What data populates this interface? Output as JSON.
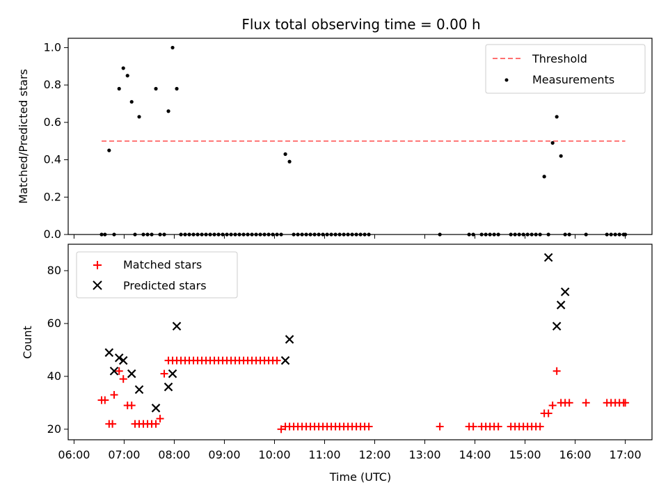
{
  "chart_data": [
    {
      "type": "scatter",
      "title": "Flux total observing time = 0.00 h",
      "xlabel": "",
      "ylabel": "Matched/Predicted stars",
      "xlim": [
        "05:53",
        "17:32"
      ],
      "ylim": [
        0.0,
        1.05
      ],
      "yticks": [
        0.0,
        0.2,
        0.4,
        0.6,
        0.8,
        1.0
      ],
      "grid": false,
      "legend_position": "top-right",
      "series": [
        {
          "name": "Threshold",
          "style": "dashed-line",
          "color": "#ff7070",
          "x": [
            "06:33",
            "17:00"
          ],
          "y": [
            0.5,
            0.5
          ]
        },
        {
          "name": "Measurements",
          "style": "dots",
          "color": "#000000",
          "x": [
            "06:33",
            "06:37",
            "06:42",
            "06:48",
            "06:54",
            "06:59",
            "07:04",
            "07:09",
            "07:13",
            "07:18",
            "07:23",
            "07:28",
            "07:33",
            "07:38",
            "07:43",
            "07:48",
            "07:53",
            "07:58",
            "08:03",
            "08:08",
            "08:13",
            "08:18",
            "08:23",
            "08:28",
            "08:33",
            "08:38",
            "08:43",
            "08:48",
            "08:53",
            "08:58",
            "09:03",
            "09:08",
            "09:13",
            "09:18",
            "09:23",
            "09:28",
            "09:33",
            "09:38",
            "09:43",
            "09:48",
            "09:53",
            "09:58",
            "10:03",
            "10:08",
            "10:13",
            "10:18",
            "10:23",
            "10:28",
            "10:33",
            "10:38",
            "10:43",
            "10:48",
            "10:53",
            "10:58",
            "11:03",
            "11:08",
            "11:13",
            "11:18",
            "11:23",
            "11:28",
            "11:33",
            "11:38",
            "11:43",
            "11:48",
            "11:53",
            "13:18",
            "13:53",
            "13:58",
            "14:08",
            "14:13",
            "14:18",
            "14:23",
            "14:28",
            "14:43",
            "14:48",
            "14:53",
            "14:58",
            "15:03",
            "15:08",
            "15:13",
            "15:18",
            "15:23",
            "15:28",
            "15:33",
            "15:38",
            "15:43",
            "15:48",
            "15:53",
            "16:13",
            "16:38",
            "16:43",
            "16:48",
            "16:53",
            "16:58",
            "17:00"
          ],
          "y": [
            0.0,
            0.0,
            0.45,
            0.0,
            0.78,
            0.89,
            0.85,
            0.71,
            0.0,
            0.63,
            0.0,
            0.0,
            0.0,
            0.78,
            0.0,
            0.0,
            0.66,
            1.0,
            0.78,
            0.0,
            0.0,
            0.0,
            0.0,
            0.0,
            0.0,
            0.0,
            0.0,
            0.0,
            0.0,
            0.0,
            0.0,
            0.0,
            0.0,
            0.0,
            0.0,
            0.0,
            0.0,
            0.0,
            0.0,
            0.0,
            0.0,
            0.0,
            0.0,
            0.0,
            0.43,
            0.39,
            0.0,
            0.0,
            0.0,
            0.0,
            0.0,
            0.0,
            0.0,
            0.0,
            0.0,
            0.0,
            0.0,
            0.0,
            0.0,
            0.0,
            0.0,
            0.0,
            0.0,
            0.0,
            0.0,
            0.0,
            0.0,
            0.0,
            0.0,
            0.0,
            0.0,
            0.0,
            0.0,
            0.0,
            0.0,
            0.0,
            0.0,
            0.0,
            0.0,
            0.0,
            0.0,
            0.31,
            0.0,
            0.49,
            0.63,
            0.42,
            0.0,
            0.0,
            0.0,
            0.0,
            0.0,
            0.0,
            0.0,
            0.0,
            0.0
          ]
        }
      ]
    },
    {
      "type": "scatter",
      "title": "",
      "xlabel": "Time (UTC)",
      "ylabel": "Count",
      "xlim": [
        "05:53",
        "17:32"
      ],
      "ylim": [
        16,
        90
      ],
      "yticks": [
        20,
        40,
        60,
        80
      ],
      "xticks": [
        "06:00",
        "07:00",
        "08:00",
        "09:00",
        "10:00",
        "11:00",
        "12:00",
        "13:00",
        "14:00",
        "15:00",
        "16:00",
        "17:00"
      ],
      "grid": false,
      "legend_position": "top-left",
      "series": [
        {
          "name": "Matched stars",
          "marker": "plus",
          "color": "#ff0000",
          "x": [
            "06:33",
            "06:37",
            "06:42",
            "06:46",
            "06:48",
            "06:54",
            "06:59",
            "07:04",
            "07:09",
            "07:13",
            "07:18",
            "07:23",
            "07:28",
            "07:33",
            "07:38",
            "07:43",
            "07:48",
            "07:53",
            "07:58",
            "08:03",
            "08:08",
            "08:13",
            "08:18",
            "08:23",
            "08:28",
            "08:33",
            "08:38",
            "08:43",
            "08:48",
            "08:53",
            "08:58",
            "09:03",
            "09:08",
            "09:13",
            "09:18",
            "09:23",
            "09:28",
            "09:33",
            "09:38",
            "09:43",
            "09:48",
            "09:53",
            "09:58",
            "10:03",
            "10:08",
            "10:13",
            "10:18",
            "10:23",
            "10:28",
            "10:33",
            "10:38",
            "10:43",
            "10:48",
            "10:53",
            "10:58",
            "11:03",
            "11:08",
            "11:13",
            "11:18",
            "11:23",
            "11:28",
            "11:33",
            "11:38",
            "11:43",
            "11:48",
            "11:53",
            "13:18",
            "13:53",
            "13:58",
            "14:08",
            "14:13",
            "14:18",
            "14:23",
            "14:28",
            "14:43",
            "14:48",
            "14:53",
            "14:58",
            "15:03",
            "15:08",
            "15:13",
            "15:18",
            "15:23",
            "15:28",
            "15:33",
            "15:38",
            "15:43",
            "15:48",
            "15:53",
            "16:13",
            "16:38",
            "16:43",
            "16:48",
            "16:53",
            "16:58",
            "17:00"
          ],
          "y": [
            31,
            31,
            22,
            22,
            33,
            42,
            39,
            29,
            29,
            22,
            22,
            22,
            22,
            22,
            22,
            24,
            41,
            46,
            46,
            46,
            46,
            46,
            46,
            46,
            46,
            46,
            46,
            46,
            46,
            46,
            46,
            46,
            46,
            46,
            46,
            46,
            46,
            46,
            46,
            46,
            46,
            46,
            46,
            46,
            20,
            21,
            21,
            21,
            21,
            21,
            21,
            21,
            21,
            21,
            21,
            21,
            21,
            21,
            21,
            21,
            21,
            21,
            21,
            21,
            21,
            21,
            21,
            21,
            21,
            21,
            21,
            21,
            21,
            21,
            21,
            21,
            21,
            21,
            21,
            21,
            21,
            21,
            26,
            26,
            29,
            42,
            30,
            30,
            30,
            30,
            30,
            30,
            30,
            30,
            30,
            30
          ]
        },
        {
          "name": "Predicted stars",
          "marker": "x",
          "color": "#000000",
          "x": [
            "06:42",
            "06:48",
            "06:54",
            "06:59",
            "07:09",
            "07:18",
            "07:38",
            "07:53",
            "07:58",
            "08:03",
            "10:13",
            "10:18",
            "15:28",
            "15:38",
            "15:43",
            "15:48"
          ],
          "y": [
            49,
            42,
            47,
            46,
            41,
            35,
            28,
            36,
            41,
            59,
            46,
            54,
            85,
            59,
            67,
            72
          ]
        }
      ]
    }
  ]
}
